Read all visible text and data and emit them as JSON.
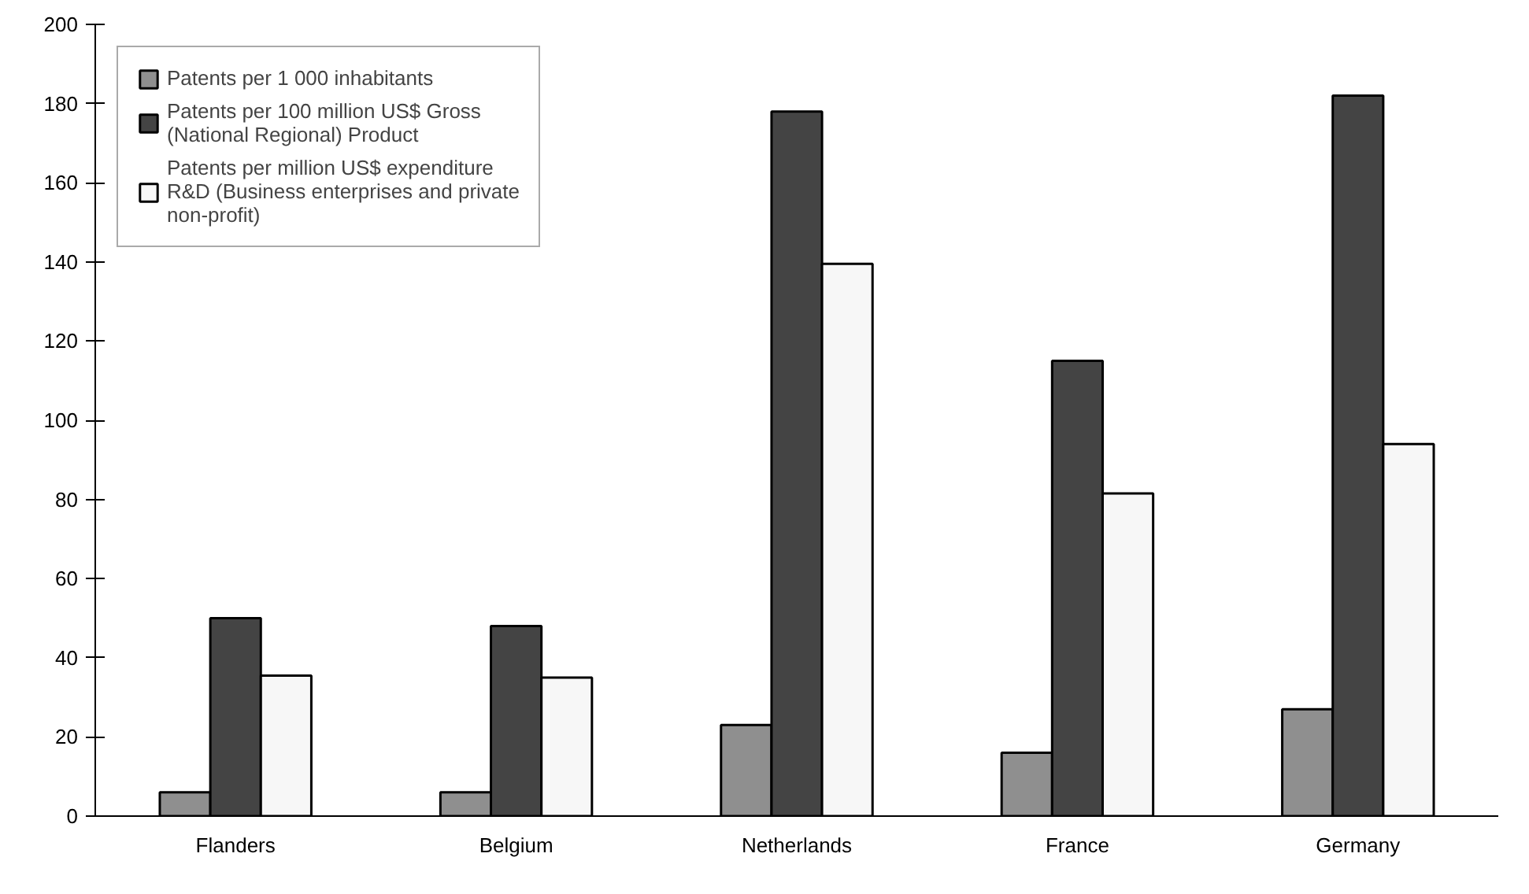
{
  "chart_data": {
    "type": "bar",
    "categories": [
      "Flanders",
      "Belgium",
      "Netherlands",
      "France",
      "Germany"
    ],
    "series": [
      {
        "name": "Patents per 1 000 inhabitants",
        "color": "#8f8f8f",
        "values": [
          6,
          6,
          23,
          16,
          27
        ]
      },
      {
        "name": "Patents per 100 million US$ Gross (National Regional) Product",
        "color": "#444444",
        "values": [
          50,
          48,
          178,
          115,
          182
        ]
      },
      {
        "name": "Patents per million US$ expenditure R&D (Business enterprises and private non-profit)",
        "color": "#f7f7f7",
        "values": [
          35.5,
          35,
          139.5,
          81.5,
          94
        ]
      }
    ],
    "ylim": [
      0,
      200
    ],
    "yticks": [
      0,
      20,
      40,
      60,
      80,
      100,
      120,
      140,
      160,
      180,
      200
    ],
    "grid": false,
    "legend": "top left"
  }
}
